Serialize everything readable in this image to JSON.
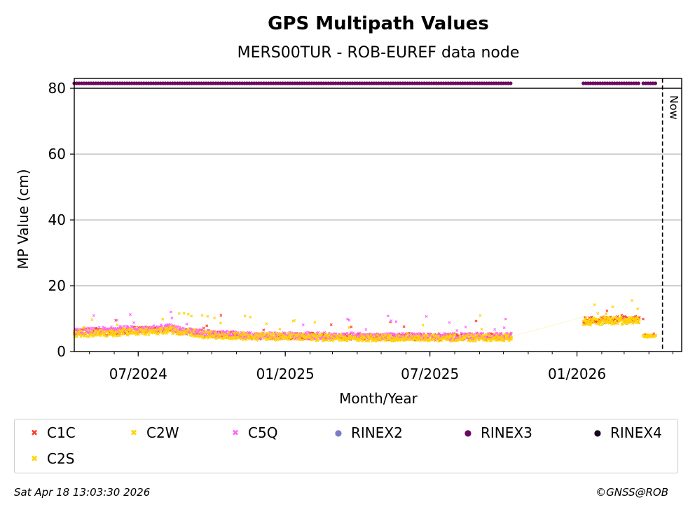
{
  "chart_data": {
    "type": "scatter",
    "title": "GPS Multipath Values",
    "subtitle": "MERS00TUR - ROB-EUREF data node",
    "xlabel": "Month/Year",
    "ylabel": "MP Value (cm)",
    "xlim": [
      "2024-04-12",
      "2026-05-12"
    ],
    "ylim": [
      0,
      83
    ],
    "yticks": [
      0,
      20,
      40,
      60,
      80
    ],
    "xticks": [
      {
        "date": "2024-07-01",
        "label": "07/2024"
      },
      {
        "date": "2025-01-01",
        "label": "01/2025"
      },
      {
        "date": "2025-07-01",
        "label": "07/2025"
      },
      {
        "date": "2026-01-01",
        "label": "01/2026"
      }
    ],
    "grid": "horizontal",
    "now_marker": {
      "date": "2026-04-18",
      "label": "Now"
    },
    "rinex_availability_y": 81.5,
    "rinex3_periods": [
      [
        "2024-04-12",
        "2025-10-11"
      ],
      [
        "2026-01-09",
        "2026-03-20"
      ],
      [
        "2026-03-25",
        "2026-04-09"
      ]
    ],
    "series": [
      {
        "name": "C1C",
        "color": "#ff3b30",
        "marker": "x",
        "segments": [
          {
            "start": "2024-04-12",
            "end": "2025-10-11",
            "profile": [
              [
                0,
                5.8
              ],
              [
                0.05,
                6.2
              ],
              [
                0.08,
                5.9
              ],
              [
                0.12,
                6.5
              ],
              [
                0.18,
                6.8
              ],
              [
                0.22,
                7.2
              ],
              [
                0.24,
                6.2
              ],
              [
                0.3,
                5.5
              ],
              [
                0.35,
                5.0
              ],
              [
                0.4,
                4.8
              ],
              [
                0.6,
                4.6
              ],
              [
                0.8,
                4.4
              ],
              [
                1,
                4.6
              ]
            ],
            "spread": 2.0
          },
          {
            "start": "2026-01-09",
            "end": "2026-03-20",
            "profile": [
              [
                0,
                9.5
              ],
              [
                1,
                9.8
              ]
            ],
            "spread": 2.2
          },
          {
            "start": "2026-03-25",
            "end": "2026-04-09",
            "profile": [
              [
                0,
                5.0
              ],
              [
                1,
                5.0
              ]
            ],
            "spread": 0.8
          }
        ]
      },
      {
        "name": "C2W",
        "color": "#ffd400",
        "marker": "x",
        "segments": [
          {
            "start": "2024-04-12",
            "end": "2025-10-11",
            "profile": [
              [
                0,
                5.5
              ],
              [
                0.05,
                5.8
              ],
              [
                0.12,
                6.0
              ],
              [
                0.18,
                6.2
              ],
              [
                0.22,
                6.8
              ],
              [
                0.3,
                5.2
              ],
              [
                0.4,
                4.5
              ],
              [
                0.6,
                4.3
              ],
              [
                0.8,
                4.1
              ],
              [
                1,
                4.3
              ]
            ],
            "spread": 2.2
          },
          {
            "start": "2026-01-09",
            "end": "2026-03-20",
            "profile": [
              [
                0,
                9.2
              ],
              [
                1,
                9.6
              ]
            ],
            "spread": 2.4
          },
          {
            "start": "2026-03-25",
            "end": "2026-04-09",
            "profile": [
              [
                0,
                4.8
              ],
              [
                1,
                4.8
              ]
            ],
            "spread": 0.9
          }
        ]
      },
      {
        "name": "C5Q",
        "color": "#ff66ff",
        "marker": "x",
        "segments": [
          {
            "start": "2024-04-12",
            "end": "2025-10-11",
            "profile": [
              [
                0,
                6.0
              ],
              [
                0.05,
                6.5
              ],
              [
                0.12,
                6.8
              ],
              [
                0.18,
                7.0
              ],
              [
                0.22,
                7.5
              ],
              [
                0.24,
                6.5
              ],
              [
                0.3,
                5.6
              ],
              [
                0.4,
                5.0
              ],
              [
                0.6,
                4.8
              ],
              [
                0.8,
                4.6
              ],
              [
                1,
                4.7
              ]
            ],
            "spread": 2.0
          }
        ]
      },
      {
        "name": "RINEX2",
        "color": "#7b7bc8",
        "marker": "o",
        "segments": []
      },
      {
        "name": "RINEX3",
        "color": "#6a0a5e",
        "marker": "o",
        "segments": []
      },
      {
        "name": "RINEX4",
        "color": "#1a0520",
        "marker": "o",
        "segments": []
      },
      {
        "name": "C2S",
        "color": "#ffd400",
        "marker": "x",
        "segments": [
          {
            "start": "2024-04-12",
            "end": "2025-10-11",
            "profile": [
              [
                0,
                5.3
              ],
              [
                0.12,
                5.8
              ],
              [
                0.22,
                6.4
              ],
              [
                0.3,
                5.0
              ],
              [
                0.6,
                4.2
              ],
              [
                1,
                4.2
              ]
            ],
            "spread": 2.0
          },
          {
            "start": "2026-01-09",
            "end": "2026-03-20",
            "profile": [
              [
                0,
                9.0
              ],
              [
                1,
                9.4
              ]
            ],
            "spread": 2.2
          },
          {
            "start": "2026-03-25",
            "end": "2026-04-09",
            "profile": [
              [
                0,
                4.6
              ],
              [
                1,
                4.6
              ]
            ],
            "spread": 0.8
          }
        ]
      }
    ]
  },
  "footer": {
    "timestamp": "Sat Apr 18 13:03:30 2026",
    "copyright": "©GNSS@ROB"
  }
}
